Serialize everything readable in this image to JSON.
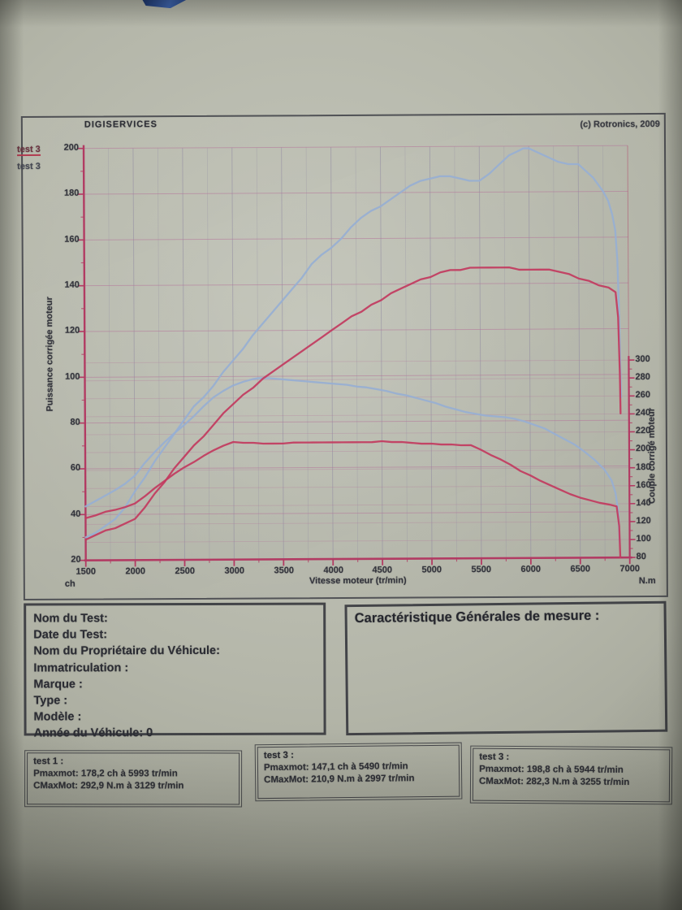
{
  "header": {
    "title": "DIGISERVICES",
    "copyright": "(c) Rotronics, 2009"
  },
  "legend": {
    "items": [
      {
        "label": "test 3"
      },
      {
        "label": "test 3"
      }
    ]
  },
  "chart_data": {
    "type": "line",
    "title": "DIGISERVICES",
    "xlabel": "Vitesse moteur (tr/min)",
    "ylabel_left": "Puissance corrigée moteur",
    "ylabel_right": "Couple corrigé moteur",
    "unit_left": "ch",
    "unit_right": "N.m",
    "xlim": [
      1500,
      7000
    ],
    "ylim_left": [
      20,
      200
    ],
    "ylim_right": [
      80,
      300
    ],
    "x_ticks": [
      1500,
      2000,
      2500,
      3000,
      3500,
      4000,
      4500,
      5000,
      5500,
      6000,
      6500,
      7000
    ],
    "y_ticks_left": [
      20,
      40,
      60,
      80,
      100,
      120,
      140,
      160,
      180,
      200
    ],
    "y_ticks_right": [
      80,
      100,
      120,
      140,
      160,
      180,
      200,
      220,
      240,
      260,
      280,
      300
    ],
    "grid": true,
    "legend_position": "top-left",
    "series": [
      {
        "name": "test 3 puissance (ch)",
        "axis": "left",
        "color": "#97afd3",
        "points": [
          [
            1500,
            30
          ],
          [
            1600,
            32
          ],
          [
            1700,
            35
          ],
          [
            1800,
            38
          ],
          [
            1900,
            43
          ],
          [
            2000,
            50
          ],
          [
            2100,
            56
          ],
          [
            2200,
            63
          ],
          [
            2300,
            69
          ],
          [
            2400,
            75
          ],
          [
            2500,
            81
          ],
          [
            2600,
            87
          ],
          [
            2700,
            91
          ],
          [
            2800,
            96
          ],
          [
            2900,
            102
          ],
          [
            3000,
            107
          ],
          [
            3100,
            112
          ],
          [
            3200,
            118
          ],
          [
            3300,
            123
          ],
          [
            3400,
            128
          ],
          [
            3500,
            133
          ],
          [
            3600,
            138
          ],
          [
            3700,
            143
          ],
          [
            3800,
            149
          ],
          [
            3900,
            153
          ],
          [
            4000,
            156
          ],
          [
            4100,
            160
          ],
          [
            4200,
            165
          ],
          [
            4300,
            169
          ],
          [
            4400,
            172
          ],
          [
            4500,
            174
          ],
          [
            4600,
            177
          ],
          [
            4700,
            180
          ],
          [
            4800,
            183
          ],
          [
            4900,
            185
          ],
          [
            5000,
            186
          ],
          [
            5100,
            187
          ],
          [
            5200,
            187
          ],
          [
            5300,
            186
          ],
          [
            5400,
            185
          ],
          [
            5500,
            185
          ],
          [
            5600,
            188
          ],
          [
            5700,
            192
          ],
          [
            5800,
            196
          ],
          [
            5900,
            198
          ],
          [
            5944,
            199
          ],
          [
            6000,
            199
          ],
          [
            6100,
            197
          ],
          [
            6200,
            195
          ],
          [
            6300,
            193
          ],
          [
            6400,
            192
          ],
          [
            6500,
            192
          ],
          [
            6600,
            188
          ],
          [
            6650,
            186
          ],
          [
            6700,
            183
          ],
          [
            6750,
            180
          ],
          [
            6800,
            176
          ],
          [
            6840,
            170
          ],
          [
            6870,
            163
          ],
          [
            6890,
            150
          ],
          [
            6905,
            128
          ],
          [
            6915,
            103
          ],
          [
            6920,
            90
          ]
        ]
      },
      {
        "name": "test 3 couple (N.m)",
        "axis": "right",
        "color": "#97afd3",
        "points": [
          [
            1500,
            140
          ],
          [
            1600,
            146
          ],
          [
            1700,
            152
          ],
          [
            1800,
            158
          ],
          [
            1900,
            165
          ],
          [
            2000,
            174
          ],
          [
            2100,
            188
          ],
          [
            2200,
            200
          ],
          [
            2300,
            211
          ],
          [
            2400,
            221
          ],
          [
            2500,
            230
          ],
          [
            2600,
            240
          ],
          [
            2700,
            251
          ],
          [
            2800,
            261
          ],
          [
            2900,
            268
          ],
          [
            3000,
            274
          ],
          [
            3100,
            278
          ],
          [
            3200,
            281
          ],
          [
            3255,
            282
          ],
          [
            3350,
            282
          ],
          [
            3450,
            281
          ],
          [
            3550,
            280
          ],
          [
            3650,
            279
          ],
          [
            3750,
            278
          ],
          [
            3850,
            277
          ],
          [
            3950,
            276
          ],
          [
            4050,
            275
          ],
          [
            4150,
            274
          ],
          [
            4250,
            272
          ],
          [
            4350,
            271
          ],
          [
            4450,
            269
          ],
          [
            4550,
            267
          ],
          [
            4650,
            264
          ],
          [
            4750,
            262
          ],
          [
            4850,
            259
          ],
          [
            4950,
            256
          ],
          [
            5050,
            253
          ],
          [
            5150,
            249
          ],
          [
            5250,
            246
          ],
          [
            5350,
            243
          ],
          [
            5450,
            241
          ],
          [
            5550,
            239
          ],
          [
            5650,
            238
          ],
          [
            5750,
            237
          ],
          [
            5850,
            235
          ],
          [
            5950,
            232
          ],
          [
            6050,
            228
          ],
          [
            6150,
            224
          ],
          [
            6250,
            218
          ],
          [
            6350,
            212
          ],
          [
            6450,
            206
          ],
          [
            6550,
            198
          ],
          [
            6650,
            189
          ],
          [
            6750,
            178
          ],
          [
            6820,
            166
          ],
          [
            6860,
            152
          ],
          [
            6885,
            132
          ],
          [
            6900,
            96
          ]
        ]
      },
      {
        "name": "test 3 puissance (ch)",
        "axis": "left",
        "color": "#c23a5e",
        "points": [
          [
            1500,
            29
          ],
          [
            1600,
            31
          ],
          [
            1700,
            33
          ],
          [
            1800,
            34
          ],
          [
            1900,
            36
          ],
          [
            2000,
            38
          ],
          [
            2100,
            43
          ],
          [
            2200,
            49
          ],
          [
            2300,
            54
          ],
          [
            2400,
            60
          ],
          [
            2500,
            65
          ],
          [
            2600,
            70
          ],
          [
            2700,
            74
          ],
          [
            2800,
            79
          ],
          [
            2900,
            84
          ],
          [
            3000,
            88
          ],
          [
            3100,
            92
          ],
          [
            3200,
            95
          ],
          [
            3300,
            99
          ],
          [
            3400,
            102
          ],
          [
            3500,
            105
          ],
          [
            3600,
            108
          ],
          [
            3700,
            111
          ],
          [
            3800,
            114
          ],
          [
            3900,
            117
          ],
          [
            4000,
            120
          ],
          [
            4100,
            123
          ],
          [
            4200,
            126
          ],
          [
            4300,
            128
          ],
          [
            4400,
            131
          ],
          [
            4500,
            133
          ],
          [
            4600,
            136
          ],
          [
            4700,
            138
          ],
          [
            4800,
            140
          ],
          [
            4900,
            142
          ],
          [
            5000,
            143
          ],
          [
            5100,
            145
          ],
          [
            5200,
            146
          ],
          [
            5300,
            146
          ],
          [
            5400,
            147
          ],
          [
            5490,
            147
          ],
          [
            5600,
            147
          ],
          [
            5700,
            147
          ],
          [
            5800,
            147
          ],
          [
            5900,
            146
          ],
          [
            6000,
            146
          ],
          [
            6100,
            146
          ],
          [
            6200,
            146
          ],
          [
            6300,
            145
          ],
          [
            6400,
            144
          ],
          [
            6500,
            142
          ],
          [
            6600,
            141
          ],
          [
            6700,
            139
          ],
          [
            6800,
            138
          ],
          [
            6870,
            136
          ],
          [
            6895,
            125
          ],
          [
            6910,
            100
          ],
          [
            6915,
            83
          ]
        ]
      },
      {
        "name": "test 3 couple (N.m)",
        "axis": "right",
        "color": "#c23a5e",
        "points": [
          [
            1500,
            127
          ],
          [
            1600,
            130
          ],
          [
            1700,
            134
          ],
          [
            1800,
            136
          ],
          [
            1900,
            139
          ],
          [
            2000,
            143
          ],
          [
            2100,
            151
          ],
          [
            2200,
            160
          ],
          [
            2300,
            168
          ],
          [
            2400,
            176
          ],
          [
            2500,
            183
          ],
          [
            2600,
            189
          ],
          [
            2700,
            196
          ],
          [
            2800,
            202
          ],
          [
            2900,
            207
          ],
          [
            2997,
            211
          ],
          [
            3100,
            210
          ],
          [
            3200,
            210
          ],
          [
            3300,
            209
          ],
          [
            3400,
            209
          ],
          [
            3500,
            209
          ],
          [
            3600,
            210
          ],
          [
            3700,
            210
          ],
          [
            3800,
            210
          ],
          [
            3900,
            210
          ],
          [
            4000,
            210
          ],
          [
            4100,
            210
          ],
          [
            4200,
            210
          ],
          [
            4300,
            210
          ],
          [
            4400,
            210
          ],
          [
            4500,
            211
          ],
          [
            4600,
            210
          ],
          [
            4700,
            210
          ],
          [
            4800,
            209
          ],
          [
            4900,
            208
          ],
          [
            5000,
            208
          ],
          [
            5100,
            207
          ],
          [
            5200,
            207
          ],
          [
            5300,
            206
          ],
          [
            5400,
            206
          ],
          [
            5500,
            201
          ],
          [
            5600,
            195
          ],
          [
            5700,
            190
          ],
          [
            5800,
            184
          ],
          [
            5900,
            177
          ],
          [
            6000,
            172
          ],
          [
            6100,
            166
          ],
          [
            6200,
            161
          ],
          [
            6300,
            156
          ],
          [
            6400,
            151
          ],
          [
            6500,
            147
          ],
          [
            6600,
            144
          ],
          [
            6700,
            141
          ],
          [
            6800,
            139
          ],
          [
            6870,
            137
          ],
          [
            6895,
            115
          ],
          [
            6905,
            80
          ]
        ]
      }
    ]
  },
  "info_box": {
    "lines": [
      "Nom du Test:",
      "Date du Test:",
      "Nom du Propriétaire du Véhicule:",
      "Immatriculation  :",
      "Marque  :",
      "Type  :",
      "Modèle  :",
      "Année du Véhicule: 0"
    ]
  },
  "measure_box": {
    "title": "Caractéristique Générales de mesure :"
  },
  "result_boxes": [
    {
      "title": "test 1 :",
      "pmax": "Pmaxmot: 178,2 ch à 5993 tr/min",
      "cmax": "CMaxMot: 292,9 N.m à 3129 tr/min"
    },
    {
      "title": "test 3 :",
      "pmax": "Pmaxmot: 147,1 ch à 5490 tr/min",
      "cmax": "CMaxMot: 210,9 N.m à 2997 tr/min"
    },
    {
      "title": "test 3 :",
      "pmax": "Pmaxmot: 198,8 ch à 5944 tr/min",
      "cmax": "CMaxMot: 282,3 N.m à 3255 tr/min"
    }
  ]
}
